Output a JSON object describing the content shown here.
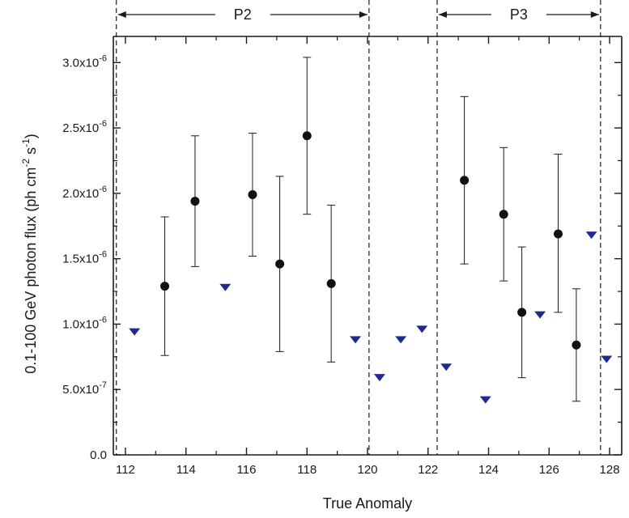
{
  "chart_data": {
    "type": "scatter",
    "xlabel": "True Anomaly",
    "ylabel": "0.1-100 GeV photon flux (ph cm",
    "ylabel_unit_exp1": "-2",
    "ylabel_unit_s": " s",
    "ylabel_unit_exp2": "-1",
    "ylabel_close": ")",
    "xlim": [
      111.6,
      128.4
    ],
    "ylim": [
      0,
      3.2e-06
    ],
    "x_ticks": [
      {
        "value": 112,
        "label": "112"
      },
      {
        "value": 114,
        "label": "114"
      },
      {
        "value": 116,
        "label": "116"
      },
      {
        "value": 118,
        "label": "118"
      },
      {
        "value": 120,
        "label": "120"
      },
      {
        "value": 122,
        "label": "122"
      },
      {
        "value": 124,
        "label": "124"
      },
      {
        "value": 126,
        "label": "126"
      },
      {
        "value": 128,
        "label": "128"
      }
    ],
    "x_minor_ticks": [
      113,
      115,
      117,
      119,
      121,
      123,
      125,
      127
    ],
    "y_ticks": [
      {
        "value": 0,
        "mant": "0.0",
        "exp": ""
      },
      {
        "value": 5e-07,
        "mant": "5.0x10",
        "exp": "-7"
      },
      {
        "value": 1e-06,
        "mant": "1.0x10",
        "exp": "-6"
      },
      {
        "value": 1.5e-06,
        "mant": "1.5x10",
        "exp": "-6"
      },
      {
        "value": 2e-06,
        "mant": "2.0x10",
        "exp": "-6"
      },
      {
        "value": 2.5e-06,
        "mant": "2.5x10",
        "exp": "-6"
      },
      {
        "value": 3e-06,
        "mant": "3.0x10",
        "exp": "-6"
      }
    ],
    "y_minor_ticks": [
      2.5e-07,
      7.5e-07,
      1.25e-06,
      1.75e-06,
      2.25e-06,
      2.75e-06
    ],
    "periods": [
      {
        "label": "P2",
        "start": 111.7,
        "end": 120.05
      },
      {
        "label": "P3",
        "start": 122.3,
        "end": 127.7
      }
    ],
    "series": [
      {
        "marker": "circle",
        "color": "#111111",
        "points": [
          {
            "x": 113.3,
            "y": 1.29e-06,
            "ylo": 7.6e-07,
            "yhi": 1.82e-06
          },
          {
            "x": 114.3,
            "y": 1.94e-06,
            "ylo": 1.44e-06,
            "yhi": 2.44e-06
          },
          {
            "x": 116.2,
            "y": 1.99e-06,
            "ylo": 1.52e-06,
            "yhi": 2.46e-06
          },
          {
            "x": 117.1,
            "y": 1.46e-06,
            "ylo": 7.9e-07,
            "yhi": 2.13e-06
          },
          {
            "x": 118.0,
            "y": 2.44e-06,
            "ylo": 1.84e-06,
            "yhi": 3.04e-06
          },
          {
            "x": 118.8,
            "y": 1.31e-06,
            "ylo": 7.1e-07,
            "yhi": 1.91e-06
          },
          {
            "x": 123.2,
            "y": 2.1e-06,
            "ylo": 1.46e-06,
            "yhi": 2.74e-06
          },
          {
            "x": 124.5,
            "y": 1.84e-06,
            "ylo": 1.33e-06,
            "yhi": 2.35e-06
          },
          {
            "x": 125.1,
            "y": 1.09e-06,
            "ylo": 5.9e-07,
            "yhi": 1.59e-06
          },
          {
            "x": 126.3,
            "y": 1.69e-06,
            "ylo": 1.09e-06,
            "yhi": 2.3e-06
          },
          {
            "x": 126.9,
            "y": 8.4e-07,
            "ylo": 4.1e-07,
            "yhi": 1.27e-06
          }
        ]
      },
      {
        "marker": "triangle-down",
        "color": "#1f2a8c",
        "points": [
          {
            "x": 112.3,
            "y": 9.4e-07
          },
          {
            "x": 115.3,
            "y": 1.28e-06
          },
          {
            "x": 119.6,
            "y": 8.8e-07
          },
          {
            "x": 120.4,
            "y": 5.9e-07
          },
          {
            "x": 121.1,
            "y": 8.8e-07
          },
          {
            "x": 121.8,
            "y": 9.6e-07
          },
          {
            "x": 122.6,
            "y": 6.7e-07
          },
          {
            "x": 123.9,
            "y": 4.2e-07
          },
          {
            "x": 125.7,
            "y": 1.07e-06
          },
          {
            "x": 127.4,
            "y": 1.68e-06
          },
          {
            "x": 127.9,
            "y": 7.3e-07
          }
        ]
      }
    ]
  }
}
